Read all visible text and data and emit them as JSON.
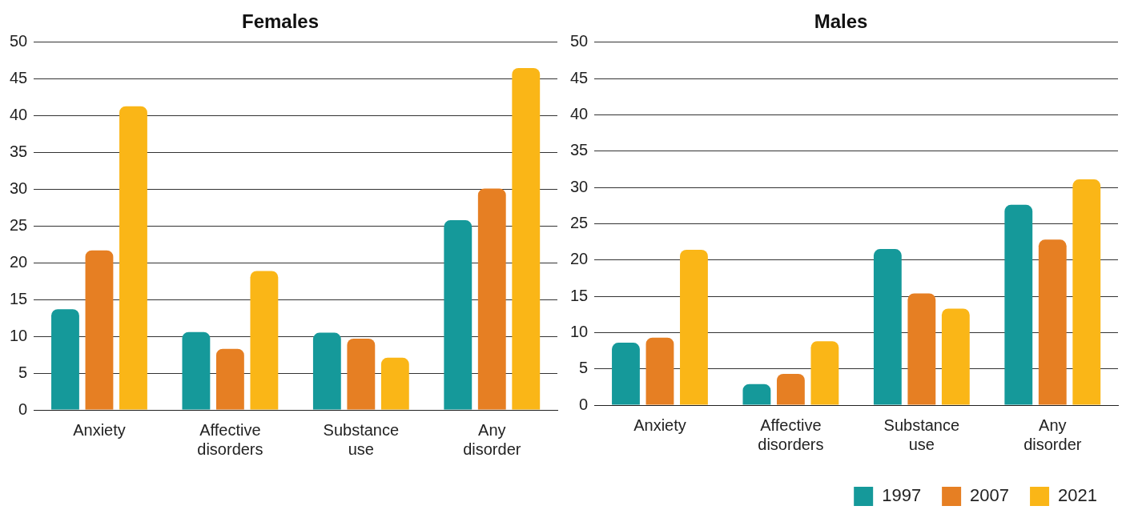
{
  "chart_data": [
    {
      "type": "bar",
      "title": "Females",
      "categories": [
        "Anxiety",
        "Affective disorders",
        "Substance use",
        "Any disorder"
      ],
      "series": [
        {
          "color": "#15999a",
          "values": [
            13.7,
            10.6,
            10.5,
            25.8
          ]
        },
        {
          "color": "#e67f23",
          "values": [
            21.7,
            8.3,
            9.7,
            30.1
          ]
        },
        {
          "color": "#fab617",
          "values": [
            41.3,
            18.9,
            7.1,
            46.5
          ]
        }
      ],
      "ylim": [
        0,
        50
      ],
      "yticks": [
        0,
        5,
        10,
        15,
        20,
        25,
        30,
        35,
        40,
        45,
        50
      ],
      "grid": "y"
    },
    {
      "type": "bar",
      "title": "Males",
      "categories": [
        "Anxiety",
        "Affective disorders",
        "Substance use",
        "Any disorder"
      ],
      "series": [
        {
          "name": "1997",
          "color": "#15999a",
          "values": [
            8.6,
            2.9,
            21.5,
            27.6
          ]
        },
        {
          "name": "2007",
          "color": "#e67f23",
          "values": [
            9.3,
            4.3,
            15.4,
            22.8
          ]
        },
        {
          "name": "2021",
          "color": "#fab617",
          "values": [
            21.4,
            8.8,
            13.3,
            31.1
          ]
        }
      ],
      "ylim": [
        0,
        50
      ],
      "yticks": [
        0,
        5,
        10,
        15,
        20,
        25,
        30,
        35,
        40,
        45,
        50
      ],
      "grid": "y",
      "legend": "bottom right"
    }
  ]
}
